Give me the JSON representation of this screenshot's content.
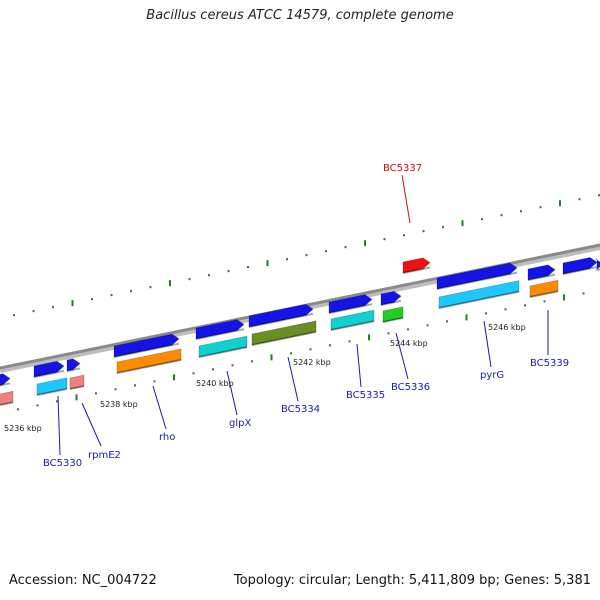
{
  "title": "Bacillus cereus ATCC 14579, complete genome",
  "footer": {
    "accession": "Accession: NC_004722",
    "topology": "Topology: circular; Length: 5,411,809 bp; Genes: 5,381"
  },
  "colors": {
    "backbone": "#8a8a8a",
    "tick": "#1f7f1f",
    "label_default": "#1a1aa8",
    "label_highlight": "#cc1111"
  },
  "ticks": [
    {
      "label": "5236 kbp"
    },
    {
      "label": "5238 kbp"
    },
    {
      "label": "5240 kbp"
    },
    {
      "label": "5242 kbp"
    },
    {
      "label": "5244 kbp"
    },
    {
      "label": "5246 kbp"
    }
  ],
  "gene_labels": [
    {
      "text": "BC5330",
      "color": "#1a1aa8"
    },
    {
      "text": "rpmE2",
      "color": "#1a1aa8"
    },
    {
      "text": "rho",
      "color": "#1a1aa8"
    },
    {
      "text": "glpX",
      "color": "#1a1aa8"
    },
    {
      "text": "BC5334",
      "color": "#1a1aa8"
    },
    {
      "text": "BC5335",
      "color": "#1a1aa8"
    },
    {
      "text": "BC5336",
      "color": "#1a1aa8"
    },
    {
      "text": "BC5337",
      "color": "#cc1111"
    },
    {
      "text": "pyrG",
      "color": "#1a1aa8"
    },
    {
      "text": "BC5339",
      "color": "#1a1aa8"
    }
  ]
}
